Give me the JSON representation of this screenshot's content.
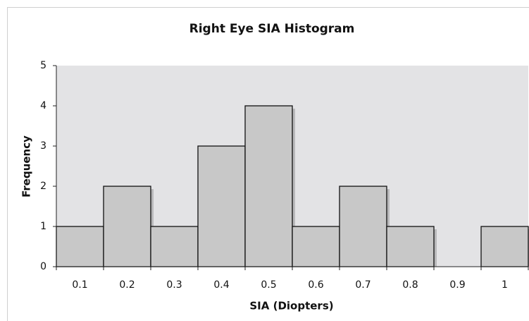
{
  "chart_data": {
    "type": "bar",
    "title": "Right Eye SIA Histogram",
    "x_label": "SIA (Diopters)",
    "y_label": "Frequency",
    "categories": [
      "0.1",
      "0.2",
      "0.3",
      "0.4",
      "0.5",
      "0.6",
      "0.7",
      "0.8",
      "0.9",
      "1"
    ],
    "values": [
      1,
      2,
      1,
      3,
      4,
      1,
      2,
      1,
      0,
      1
    ],
    "color": "#c8c8c8",
    "ylim": [
      0,
      5
    ],
    "yticks": [
      0,
      1,
      2,
      3,
      4,
      5
    ],
    "grid": false
  }
}
